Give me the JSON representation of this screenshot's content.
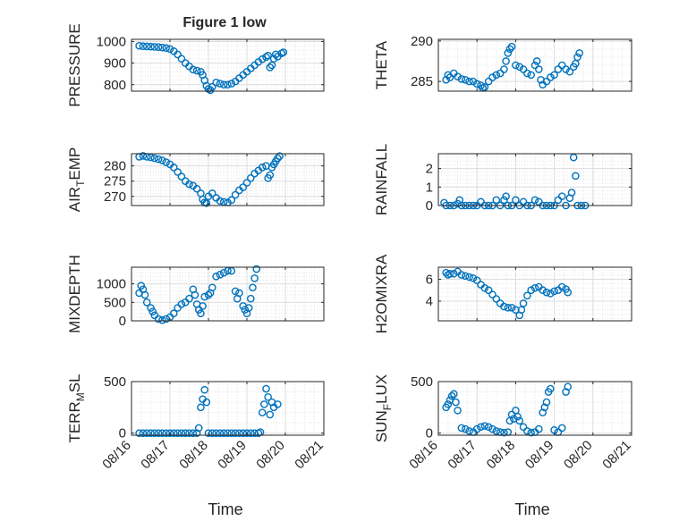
{
  "title": "Figure 1 low",
  "xlabel": "Time",
  "x_tick_labels": [
    "08/16",
    "08/17",
    "08/18",
    "08/19",
    "08/20",
    "08/21"
  ],
  "marker_color": "#0072BD",
  "chart_data": [
    {
      "type": "scatter",
      "id": "pressure",
      "ylabel": "PRESSURE",
      "ylim": [
        770,
        1010
      ],
      "yticks": [
        800,
        900,
        1000
      ],
      "xlim": [
        0,
        5
      ],
      "grid": true,
      "points": [
        [
          0.2,
          980
        ],
        [
          0.3,
          978
        ],
        [
          0.4,
          977
        ],
        [
          0.5,
          976
        ],
        [
          0.6,
          975
        ],
        [
          0.7,
          974
        ],
        [
          0.8,
          972
        ],
        [
          0.9,
          970
        ],
        [
          1.0,
          965
        ],
        [
          1.1,
          955
        ],
        [
          1.2,
          940
        ],
        [
          1.3,
          920
        ],
        [
          1.4,
          900
        ],
        [
          1.5,
          885
        ],
        [
          1.6,
          870
        ],
        [
          1.7,
          865
        ],
        [
          1.8,
          860
        ],
        [
          1.85,
          845
        ],
        [
          1.9,
          820
        ],
        [
          1.95,
          795
        ],
        [
          2.0,
          780
        ],
        [
          2.05,
          775
        ],
        [
          2.1,
          790
        ],
        [
          2.2,
          810
        ],
        [
          2.3,
          805
        ],
        [
          2.4,
          800
        ],
        [
          2.5,
          800
        ],
        [
          2.6,
          805
        ],
        [
          2.7,
          815
        ],
        [
          2.8,
          830
        ],
        [
          2.9,
          845
        ],
        [
          3.0,
          860
        ],
        [
          3.1,
          875
        ],
        [
          3.2,
          890
        ],
        [
          3.3,
          905
        ],
        [
          3.4,
          918
        ],
        [
          3.5,
          928
        ],
        [
          3.55,
          935
        ],
        [
          3.6,
          880
        ],
        [
          3.65,
          890
        ],
        [
          3.7,
          920
        ],
        [
          3.75,
          940
        ],
        [
          3.8,
          930
        ],
        [
          3.9,
          945
        ],
        [
          3.95,
          950
        ]
      ]
    },
    {
      "type": "scatter",
      "id": "theta",
      "ylabel": "THETA",
      "ylim": [
        283.8,
        290.2
      ],
      "yticks": [
        285,
        290
      ],
      "xlim": [
        0,
        5
      ],
      "grid": true,
      "points": [
        [
          0.2,
          285.2
        ],
        [
          0.25,
          285.8
        ],
        [
          0.3,
          285.5
        ],
        [
          0.4,
          286.0
        ],
        [
          0.5,
          285.6
        ],
        [
          0.6,
          285.3
        ],
        [
          0.7,
          285.2
        ],
        [
          0.8,
          285.0
        ],
        [
          0.9,
          285.0
        ],
        [
          1.0,
          284.7
        ],
        [
          1.1,
          284.5
        ],
        [
          1.15,
          284.2
        ],
        [
          1.2,
          284.3
        ],
        [
          1.3,
          285.0
        ],
        [
          1.4,
          285.5
        ],
        [
          1.5,
          285.8
        ],
        [
          1.6,
          286.0
        ],
        [
          1.7,
          286.5
        ],
        [
          1.75,
          287.5
        ],
        [
          1.8,
          288.5
        ],
        [
          1.85,
          289.0
        ],
        [
          1.9,
          289.3
        ],
        [
          2.0,
          287.0
        ],
        [
          2.1,
          286.8
        ],
        [
          2.2,
          286.5
        ],
        [
          2.3,
          286.0
        ],
        [
          2.4,
          285.8
        ],
        [
          2.5,
          287.0
        ],
        [
          2.55,
          287.5
        ],
        [
          2.6,
          286.5
        ],
        [
          2.65,
          285.2
        ],
        [
          2.7,
          284.6
        ],
        [
          2.8,
          285.0
        ],
        [
          2.9,
          285.5
        ],
        [
          3.0,
          285.8
        ],
        [
          3.1,
          286.5
        ],
        [
          3.2,
          287.0
        ],
        [
          3.3,
          286.5
        ],
        [
          3.4,
          286.2
        ],
        [
          3.5,
          286.8
        ],
        [
          3.55,
          287.2
        ],
        [
          3.6,
          288.0
        ],
        [
          3.65,
          288.5
        ]
      ]
    },
    {
      "type": "scatter",
      "id": "air_temp",
      "ylabel_parts": [
        "AIR",
        "T",
        "EMP"
      ],
      "ylim": [
        267,
        284
      ],
      "yticks": [
        270,
        275,
        280
      ],
      "xlim": [
        0,
        5
      ],
      "grid": true,
      "points": [
        [
          0.2,
          283.0
        ],
        [
          0.3,
          283.3
        ],
        [
          0.4,
          283.0
        ],
        [
          0.5,
          282.8
        ],
        [
          0.6,
          282.5
        ],
        [
          0.7,
          282.2
        ],
        [
          0.8,
          281.8
        ],
        [
          0.9,
          281.2
        ],
        [
          1.0,
          280.5
        ],
        [
          1.1,
          279.5
        ],
        [
          1.2,
          278.0
        ],
        [
          1.3,
          276.5
        ],
        [
          1.4,
          275.0
        ],
        [
          1.5,
          274.0
        ],
        [
          1.6,
          273.5
        ],
        [
          1.7,
          272.5
        ],
        [
          1.8,
          271.0
        ],
        [
          1.85,
          269.0
        ],
        [
          1.9,
          268.0
        ],
        [
          1.95,
          267.8
        ],
        [
          2.0,
          270.0
        ],
        [
          2.1,
          271.0
        ],
        [
          2.2,
          269.5
        ],
        [
          2.3,
          268.5
        ],
        [
          2.4,
          268.2
        ],
        [
          2.5,
          268.0
        ],
        [
          2.6,
          268.8
        ],
        [
          2.7,
          270.5
        ],
        [
          2.8,
          272.0
        ],
        [
          2.9,
          273.0
        ],
        [
          3.0,
          274.5
        ],
        [
          3.1,
          276.0
        ],
        [
          3.2,
          277.5
        ],
        [
          3.3,
          278.5
        ],
        [
          3.4,
          279.5
        ],
        [
          3.5,
          280.0
        ],
        [
          3.55,
          276.0
        ],
        [
          3.6,
          277.0
        ],
        [
          3.65,
          279.5
        ],
        [
          3.7,
          280.5
        ],
        [
          3.75,
          281.5
        ],
        [
          3.8,
          282.5
        ],
        [
          3.85,
          283.2
        ]
      ]
    },
    {
      "type": "scatter",
      "id": "rainfall",
      "ylabel": "RAINFALL",
      "ylim": [
        0,
        2.8
      ],
      "yticks": [
        0,
        1,
        2
      ],
      "xlim": [
        0,
        5
      ],
      "grid": true,
      "points": [
        [
          0.15,
          0.15
        ],
        [
          0.2,
          0.0
        ],
        [
          0.3,
          0.0
        ],
        [
          0.4,
          0.0
        ],
        [
          0.5,
          0.1
        ],
        [
          0.55,
          0.3
        ],
        [
          0.6,
          0.0
        ],
        [
          0.7,
          0.0
        ],
        [
          0.8,
          0.0
        ],
        [
          0.9,
          0.0
        ],
        [
          1.0,
          0.0
        ],
        [
          1.1,
          0.2
        ],
        [
          1.2,
          0.0
        ],
        [
          1.3,
          0.0
        ],
        [
          1.4,
          0.0
        ],
        [
          1.5,
          0.3
        ],
        [
          1.6,
          0.0
        ],
        [
          1.7,
          0.3
        ],
        [
          1.75,
          0.5
        ],
        [
          1.8,
          0.0
        ],
        [
          1.9,
          0.0
        ],
        [
          2.0,
          0.3
        ],
        [
          2.1,
          0.0
        ],
        [
          2.2,
          0.2
        ],
        [
          2.3,
          0.0
        ],
        [
          2.4,
          0.0
        ],
        [
          2.5,
          0.3
        ],
        [
          2.6,
          0.2
        ],
        [
          2.7,
          0.0
        ],
        [
          2.8,
          0.0
        ],
        [
          2.9,
          0.0
        ],
        [
          3.0,
          0.0
        ],
        [
          3.1,
          0.3
        ],
        [
          3.2,
          0.5
        ],
        [
          3.3,
          0.0
        ],
        [
          3.4,
          0.4
        ],
        [
          3.45,
          0.7
        ],
        [
          3.5,
          2.6
        ],
        [
          3.55,
          1.6
        ],
        [
          3.6,
          0.0
        ],
        [
          3.7,
          0.0
        ],
        [
          3.8,
          0.0
        ]
      ]
    },
    {
      "type": "scatter",
      "id": "mixdepth",
      "ylabel": "MIXDEPTH",
      "ylim": [
        0,
        1450
      ],
      "yticks": [
        0,
        500,
        1000
      ],
      "xlim": [
        0,
        5
      ],
      "grid": true,
      "points": [
        [
          0.2,
          750
        ],
        [
          0.25,
          950
        ],
        [
          0.3,
          850
        ],
        [
          0.35,
          700
        ],
        [
          0.4,
          500
        ],
        [
          0.5,
          350
        ],
        [
          0.55,
          250
        ],
        [
          0.6,
          150
        ],
        [
          0.7,
          50
        ],
        [
          0.8,
          20
        ],
        [
          0.9,
          50
        ],
        [
          1.0,
          100
        ],
        [
          1.1,
          200
        ],
        [
          1.2,
          350
        ],
        [
          1.3,
          450
        ],
        [
          1.4,
          500
        ],
        [
          1.5,
          600
        ],
        [
          1.6,
          850
        ],
        [
          1.65,
          700
        ],
        [
          1.7,
          450
        ],
        [
          1.75,
          300
        ],
        [
          1.8,
          200
        ],
        [
          1.85,
          400
        ],
        [
          1.9,
          650
        ],
        [
          2.0,
          700
        ],
        [
          2.05,
          750
        ],
        [
          2.1,
          900
        ],
        [
          2.2,
          1200
        ],
        [
          2.3,
          1250
        ],
        [
          2.4,
          1300
        ],
        [
          2.5,
          1350
        ],
        [
          2.6,
          1350
        ],
        [
          2.7,
          800
        ],
        [
          2.75,
          600
        ],
        [
          2.8,
          750
        ],
        [
          2.9,
          400
        ],
        [
          2.95,
          300
        ],
        [
          3.0,
          200
        ],
        [
          3.05,
          350
        ],
        [
          3.1,
          600
        ],
        [
          3.15,
          900
        ],
        [
          3.2,
          1150
        ],
        [
          3.25,
          1400
        ]
      ]
    },
    {
      "type": "scatter",
      "id": "h2omixra",
      "ylabel": "H2OMIXRA",
      "ylim": [
        2.2,
        7.1
      ],
      "yticks": [
        4,
        6
      ],
      "xlim": [
        0,
        5
      ],
      "grid": true,
      "points": [
        [
          0.2,
          6.6
        ],
        [
          0.25,
          6.4
        ],
        [
          0.3,
          6.5
        ],
        [
          0.4,
          6.5
        ],
        [
          0.5,
          6.7
        ],
        [
          0.6,
          6.4
        ],
        [
          0.7,
          6.3
        ],
        [
          0.8,
          6.2
        ],
        [
          0.9,
          6.1
        ],
        [
          1.0,
          5.9
        ],
        [
          1.1,
          5.5
        ],
        [
          1.2,
          5.2
        ],
        [
          1.3,
          5.0
        ],
        [
          1.4,
          4.6
        ],
        [
          1.5,
          4.2
        ],
        [
          1.6,
          3.8
        ],
        [
          1.7,
          3.5
        ],
        [
          1.8,
          3.4
        ],
        [
          1.9,
          3.4
        ],
        [
          2.0,
          3.2
        ],
        [
          2.1,
          2.7
        ],
        [
          2.15,
          3.2
        ],
        [
          2.2,
          3.8
        ],
        [
          2.3,
          4.5
        ],
        [
          2.4,
          5.0
        ],
        [
          2.5,
          5.2
        ],
        [
          2.6,
          5.3
        ],
        [
          2.7,
          5.0
        ],
        [
          2.8,
          4.8
        ],
        [
          2.9,
          4.7
        ],
        [
          3.0,
          4.9
        ],
        [
          3.1,
          5.0
        ],
        [
          3.2,
          5.3
        ],
        [
          3.3,
          5.1
        ],
        [
          3.35,
          4.8
        ]
      ]
    },
    {
      "type": "scatter",
      "id": "terr_msl",
      "ylabel_parts": [
        "TERR",
        "M",
        "SL"
      ],
      "ylim": [
        -20,
        500
      ],
      "yticks": [
        0,
        500
      ],
      "xlim": [
        0,
        5
      ],
      "grid": true,
      "points": [
        [
          0.2,
          0
        ],
        [
          0.3,
          0
        ],
        [
          0.4,
          0
        ],
        [
          0.5,
          0
        ],
        [
          0.6,
          0
        ],
        [
          0.7,
          0
        ],
        [
          0.8,
          0
        ],
        [
          0.9,
          0
        ],
        [
          1.0,
          0
        ],
        [
          1.1,
          0
        ],
        [
          1.2,
          0
        ],
        [
          1.3,
          0
        ],
        [
          1.4,
          0
        ],
        [
          1.5,
          0
        ],
        [
          1.6,
          0
        ],
        [
          1.7,
          0
        ],
        [
          1.75,
          50
        ],
        [
          1.8,
          250
        ],
        [
          1.85,
          330
        ],
        [
          1.9,
          420
        ],
        [
          1.95,
          300
        ],
        [
          2.0,
          0
        ],
        [
          2.1,
          0
        ],
        [
          2.2,
          0
        ],
        [
          2.3,
          0
        ],
        [
          2.4,
          0
        ],
        [
          2.5,
          0
        ],
        [
          2.6,
          0
        ],
        [
          2.7,
          0
        ],
        [
          2.8,
          0
        ],
        [
          2.9,
          0
        ],
        [
          3.0,
          0
        ],
        [
          3.1,
          0
        ],
        [
          3.2,
          0
        ],
        [
          3.3,
          0
        ],
        [
          3.35,
          10
        ],
        [
          3.4,
          200
        ],
        [
          3.45,
          280
        ],
        [
          3.5,
          430
        ],
        [
          3.55,
          350
        ],
        [
          3.6,
          180
        ],
        [
          3.65,
          300
        ],
        [
          3.7,
          250
        ],
        [
          3.8,
          280
        ]
      ]
    },
    {
      "type": "scatter",
      "id": "sun_flux",
      "ylabel_parts": [
        "SUN",
        "F",
        "LUX"
      ],
      "ylim": [
        -20,
        500
      ],
      "yticks": [
        0,
        500
      ],
      "xlim": [
        0,
        5
      ],
      "grid": true,
      "points": [
        [
          0.2,
          250
        ],
        [
          0.25,
          280
        ],
        [
          0.3,
          320
        ],
        [
          0.35,
          360
        ],
        [
          0.4,
          380
        ],
        [
          0.45,
          300
        ],
        [
          0.5,
          220
        ],
        [
          0.6,
          50
        ],
        [
          0.7,
          40
        ],
        [
          0.8,
          20
        ],
        [
          0.9,
          10
        ],
        [
          1.0,
          40
        ],
        [
          1.1,
          60
        ],
        [
          1.2,
          70
        ],
        [
          1.3,
          60
        ],
        [
          1.4,
          40
        ],
        [
          1.5,
          20
        ],
        [
          1.6,
          10
        ],
        [
          1.7,
          5
        ],
        [
          1.8,
          10
        ],
        [
          1.85,
          120
        ],
        [
          1.9,
          180
        ],
        [
          1.95,
          140
        ],
        [
          2.0,
          220
        ],
        [
          2.05,
          160
        ],
        [
          2.1,
          120
        ],
        [
          2.2,
          60
        ],
        [
          2.3,
          20
        ],
        [
          2.4,
          5
        ],
        [
          2.5,
          10
        ],
        [
          2.6,
          40
        ],
        [
          2.7,
          200
        ],
        [
          2.75,
          250
        ],
        [
          2.8,
          300
        ],
        [
          2.85,
          400
        ],
        [
          2.9,
          430
        ],
        [
          3.0,
          30
        ],
        [
          3.1,
          10
        ],
        [
          3.2,
          50
        ],
        [
          3.3,
          400
        ],
        [
          3.35,
          450
        ]
      ]
    }
  ]
}
